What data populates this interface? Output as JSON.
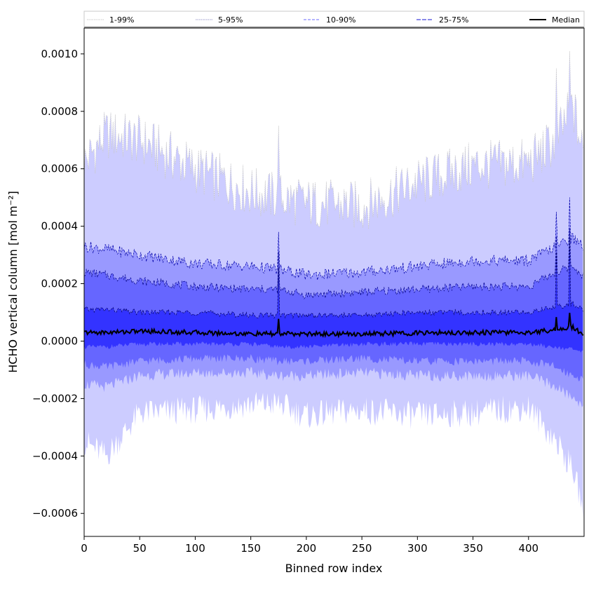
{
  "chart_data": {
    "type": "area",
    "xlabel": "Binned row index",
    "ylabel": "HCHO vertical column [mol m⁻²]",
    "xlim": [
      0,
      450
    ],
    "ylim": [
      -0.00068,
      0.00109
    ],
    "xticks": [
      0,
      50,
      100,
      150,
      200,
      250,
      300,
      350,
      400
    ],
    "xtick_labels": [
      "0",
      "50",
      "100",
      "150",
      "200",
      "250",
      "300",
      "350",
      "400"
    ],
    "yticks": [
      0.001,
      0.0008,
      0.0006,
      0.0004,
      0.0002,
      0.0,
      -0.0002,
      -0.0004,
      -0.0006
    ],
    "ytick_labels": [
      "0.0010",
      "0.0008",
      "0.0006",
      "0.0004",
      "0.0002",
      "0.0000",
      "−0.0002",
      "−0.0004",
      "−0.0006"
    ],
    "legend_position": "top",
    "x_anchor": [
      0,
      20,
      50,
      100,
      150,
      175,
      200,
      250,
      300,
      350,
      400,
      425,
      440,
      449
    ],
    "series": [
      {
        "name": "1-99%",
        "color": "#ccccff",
        "line_color": "#c8c8c8",
        "upper": [
          0.00062,
          0.00072,
          0.0007,
          0.0006,
          0.00052,
          0.0005,
          0.00048,
          0.00047,
          0.00055,
          0.00061,
          0.00062,
          0.0007,
          0.00082,
          0.00065
        ],
        "lower": [
          -0.00035,
          -0.0004,
          -0.00025,
          -0.00024,
          -0.00022,
          -0.00022,
          -0.00026,
          -0.00024,
          -0.00026,
          -0.00025,
          -0.00023,
          -0.00035,
          -0.00045,
          -0.00058
        ]
      },
      {
        "name": "5-95%",
        "color": "#9999ff",
        "line_color": "#0000aa",
        "upper": [
          0.00033,
          0.00032,
          0.0003,
          0.00027,
          0.00026,
          0.00025,
          0.00023,
          0.00024,
          0.00026,
          0.00028,
          0.00028,
          0.00033,
          0.00036,
          0.00033
        ],
        "lower": [
          -0.00015,
          -0.00016,
          -0.00012,
          -0.00011,
          -0.00011,
          -0.00012,
          -0.00012,
          -0.00011,
          -0.00012,
          -0.00012,
          -0.00012,
          -0.00016,
          -0.0002,
          -0.00022
        ]
      },
      {
        "name": "10-90%",
        "color": "#6666ff",
        "line_color": "#000088",
        "upper": [
          0.00024,
          0.00023,
          0.00021,
          0.00019,
          0.00018,
          0.00018,
          0.00016,
          0.00017,
          0.00018,
          0.00019,
          0.00019,
          0.00024,
          0.00026,
          0.00023
        ],
        "lower": [
          -8e-05,
          -9e-05,
          -7e-05,
          -6e-05,
          -6e-05,
          -7e-05,
          -7e-05,
          -6e-05,
          -7e-05,
          -7e-05,
          -7e-05,
          -9e-05,
          -0.00012,
          -0.00013
        ]
      },
      {
        "name": "25-75%",
        "color": "#3333ff",
        "line_color": "#000066",
        "upper": [
          0.00011,
          0.00011,
          0.0001,
          0.0001,
          9e-05,
          9e-05,
          9e-05,
          9e-05,
          0.0001,
          0.0001,
          0.0001,
          0.00012,
          0.00013,
          0.00011
        ],
        "lower": [
          -2e-05,
          -2e-05,
          -1e-05,
          -1e-05,
          -1e-05,
          -2e-05,
          -2e-05,
          -1e-05,
          -1e-05,
          -1e-05,
          -1e-05,
          -2e-05,
          -3e-05,
          -4e-05
        ]
      },
      {
        "name": "Median",
        "color": "#000000",
        "values": [
          3e-05,
          3e-05,
          3.5e-05,
          3e-05,
          2.5e-05,
          2.5e-05,
          2.5e-05,
          2.5e-05,
          2.8e-05,
          3e-05,
          3e-05,
          4e-05,
          5e-05,
          2e-05
        ]
      }
    ],
    "spikes": [
      {
        "x": 175,
        "upper_1_99": 0.00075,
        "upper_5_95": 0.00038
      },
      {
        "x": 425,
        "upper_1_99": 0.00095,
        "upper_5_95": 0.00045
      },
      {
        "x": 437,
        "upper_1_99": 0.00101,
        "upper_5_95": 0.0005
      }
    ]
  }
}
